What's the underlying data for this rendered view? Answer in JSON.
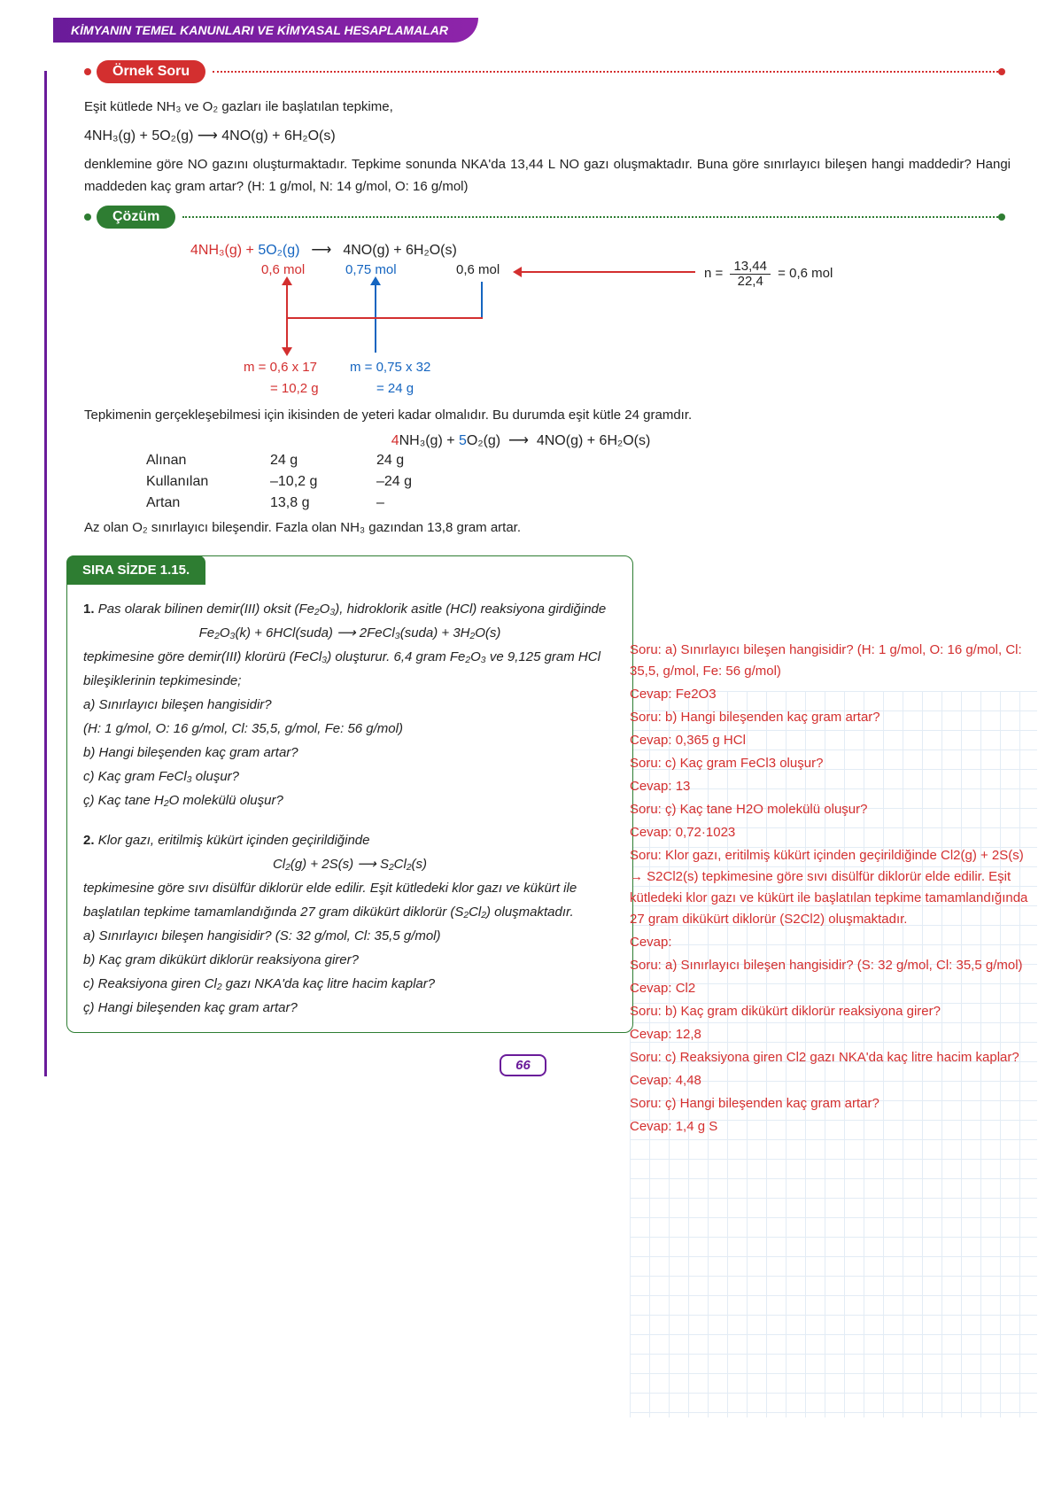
{
  "header": "KİMYANIN TEMEL KANUNLARI VE KİMYASAL HESAPLAMALAR",
  "ornek": "Örnek Soru",
  "cozum": "Çözüm",
  "p1": "Eşit kütlede NH₃ ve O₂ gazları ile başlatılan tepkime,",
  "eq1": "4NH₃(g) + 5O₂(g)  ⟶  4NO(g) + 6H₂O(s)",
  "p2": "denklemine göre NO gazını oluşturmaktadır. Tepkime sonunda NKA'da 13,44 L NO gazı oluşmaktadır. Buna göre sınırlayıcı bileşen hangi maddedir? Hangi maddeden kaç gram artar? (H: 1 g/mol, N: 14 g/mol, O: 16 g/mol)",
  "d": {
    "nh3": "4NH₃(g) +",
    "o2": "5O₂(g)",
    "arr": "⟶",
    "no": "4NO(g) + 6H₂O(s)",
    "m1": "0,6 mol",
    "m2": "0,75 mol",
    "m3": "0,6 mol",
    "n": "n =",
    "ft": "13,44",
    "fb": "22,4",
    "eq": "= 0,6 mol",
    "calc1a": "m = 0,6 x 17",
    "calc1b": "= 10,2 g",
    "calc2a": "m = 0,75 x 32",
    "calc2b": "= 24 g"
  },
  "p3": "Tepkimenin gerçekleşebilmesi için ikisinden de yeteri kadar olmalıdır. Bu durumda eşit kütle 24 gramdır.",
  "eq2": "4NH₃(g) + 5O₂(g)  ⟶  4NO(g) + 6H₂O(s)",
  "t": {
    "r1": "Alınan",
    "r2": "Kullanılan",
    "r3": "Artan",
    "c11": "24 g",
    "c12": "24 g",
    "c21": "–10,2 g",
    "c22": "–24 g",
    "c31": "13,8 g",
    "c32": "–"
  },
  "p4": "Az olan O₂ sınırlayıcı bileşendir.  Fazla olan NH₃ gazından 13,8 gram artar.",
  "sira": {
    "title": "SIRA SİZDE 1.15.",
    "q1a": "Pas olarak bilinen demir(III) oksit (Fe₂O₃), hidroklorik asitle (HCl) reaksiyona girdiğinde",
    "q1eq": "Fe₂O₃(k) + 6HCl(suda)   ⟶   2FeCl₃(suda) + 3H₂O(s)",
    "q1b": "tepkimesine göre demir(III) klorürü (FeCl₃) oluşturur. 6,4 gram Fe₂O₃ ve 9,125 gram HCl bileşiklerinin tepkimesinde;",
    "q1c": "a) Sınırlayıcı bileşen hangisidir?",
    "q1d": "(H: 1 g/mol, O: 16 g/mol, Cl: 35,5, g/mol, Fe: 56 g/mol)",
    "q1e": "b) Hangi bileşenden kaç gram artar?",
    "q1f": "c) Kaç gram FeCl₃ oluşur?",
    "q1g": "ç) Kaç tane H₂O molekülü oluşur?",
    "q2a": "Klor gazı, eritilmiş kükürt içinden geçirildiğinde",
    "q2eq": "Cl₂(g) + 2S(s)   ⟶   S₂Cl₂(s)",
    "q2b": "tepkimesine göre sıvı disülfür diklorür elde edilir. Eşit kütledeki klor gazı ve kükürt ile başlatılan tepkime tamamlandığında 27 gram dikükürt diklorür (S₂Cl₂) oluşmaktadır.",
    "q2c": "a) Sınırlayıcı bileşen hangisidir? (S: 32 g/mol, Cl: 35,5 g/mol)",
    "q2d": "b) Kaç gram dikükürt diklorür reaksiyona girer?",
    "q2e": "c) Reaksiyona giren Cl₂ gazı NKA'da kaç litre hacim kaplar?",
    "q2f": "ç) Hangi bileşenden kaç gram artar?"
  },
  "ans": [
    "Soru: a) Sınırlayıcı bileşen hangisidir? (H: 1 g/mol, O: 16 g/mol, Cl: 35,5, g/mol, Fe: 56 g/mol)",
    "Cevap: Fe2O3",
    "Soru: b) Hangi bileşenden kaç gram artar?",
    "Cevap: 0,365 g HCl",
    "Soru: c) Kaç gram FeCl3 oluşur?",
    "Cevap: 13",
    "Soru: ç) Kaç tane H2O molekülü oluşur?",
    "Cevap: 0,72·1023",
    "Soru: Klor gazı, eritilmiş kükürt içinden geçirildiğinde Cl2(g) + 2S(s) → S2Cl2(s) tepkimesine göre sıvı disülfür diklorür elde edilir. Eşit kütledeki klor gazı ve kükürt ile başlatılan tepkime tamamlandığında 27 gram dikükürt diklorür (S2Cl2) oluşmaktadır.",
    "Cevap:",
    "Soru: a) Sınırlayıcı bileşen hangisidir? (S: 32 g/mol, Cl: 35,5 g/mol)",
    "Cevap: Cl2",
    "Soru: b) Kaç gram dikükürt diklorür reaksiyona girer?",
    "Cevap: 12,8",
    "Soru: c) Reaksiyona giren Cl2 gazı NKA'da kaç litre hacim kaplar?",
    "Cevap: 4,48",
    "Soru: ç) Hangi bileşenden kaç gram artar?",
    "Cevap: 1,4 g S"
  ],
  "page": "66"
}
